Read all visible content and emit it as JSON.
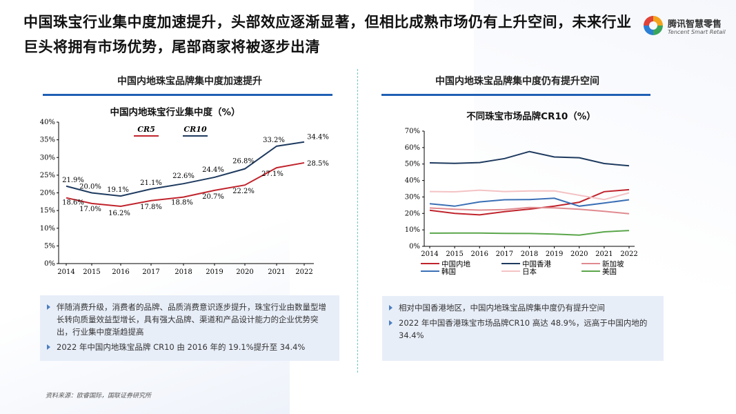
{
  "header": {
    "title": "中国珠宝行业集中度加速提升，头部效应逐渐显著，但相比成熟市场仍有上升空间，未来行业巨头将拥有市场优势，尾部商家将被逐步出清",
    "logo_name": "腾讯智慧零售",
    "logo_sub": "Tencent Smart Retail"
  },
  "left_panel": {
    "title": "中国内地珠宝品牌集中度加速提升",
    "notes": [
      "伴随消费升级，消费者的品牌、品质消费意识逐步提升，珠宝行业由数量型增长转向质量效益型增长，具有强大品牌、渠道和产品设计能力的企业优势突出，行业集中度渐趋提高",
      "2022 年中国内地珠宝品牌 CR10 由 2016 年的 19.1%提升至 34.4%"
    ]
  },
  "right_panel": {
    "title": "中国内地珠宝品牌集中度仍有提升空间",
    "notes": [
      "相对中国香港地区，中国内地珠宝品牌集中度仍有提升空间",
      "2022 年中国香港珠宝市场品牌CR10 高达 48.9%，远高于中国内地的 34.4%"
    ]
  },
  "source": "资料来源：欧睿国际，国联证券研究所",
  "chart_data": [
    {
      "type": "line",
      "title": "中国内地珠宝行业集中度（%）",
      "x": [
        "2014",
        "2015",
        "2016",
        "2017",
        "2018",
        "2019",
        "2020",
        "2021",
        "2022"
      ],
      "ylim": [
        0,
        40
      ],
      "yticks": [
        "0%",
        "5%",
        "10%",
        "15%",
        "20%",
        "25%",
        "30%",
        "35%",
        "40%"
      ],
      "series": [
        {
          "name": "CR5",
          "color": "#c0232b",
          "values": [
            18.6,
            17.0,
            16.2,
            17.8,
            18.8,
            20.7,
            22.2,
            27.1,
            28.5
          ],
          "labels": [
            "18.6%",
            "17.0%",
            "16.2%",
            "17.8%",
            "18.8%",
            "20.7%",
            "22.2%",
            "27.1%",
            "28.5%"
          ]
        },
        {
          "name": "CR10",
          "color": "#1e3a5f",
          "values": [
            21.9,
            20.0,
            19.1,
            21.1,
            22.6,
            24.4,
            26.8,
            33.2,
            34.4
          ],
          "labels": [
            "21.9%",
            "20.0%",
            "19.1%",
            "21.1%",
            "22.6%",
            "24.4%",
            "26.8%",
            "33.2%",
            "34.4%"
          ]
        }
      ]
    },
    {
      "type": "line",
      "title": "不同珠宝市场品牌CR10（%）",
      "x": [
        "2014",
        "2015",
        "2016",
        "2017",
        "2018",
        "2019",
        "2020",
        "2021",
        "2022"
      ],
      "ylim": [
        0,
        70
      ],
      "yticks": [
        "0%",
        "10%",
        "20%",
        "30%",
        "40%",
        "50%",
        "60%",
        "70%"
      ],
      "series": [
        {
          "name": "中国内地",
          "color": "#c0232b",
          "values": [
            21.9,
            20.0,
            19.1,
            21.1,
            22.6,
            24.4,
            26.8,
            33.2,
            34.4
          ]
        },
        {
          "name": "中国香港",
          "color": "#1e3a5f",
          "values": [
            50.7,
            50.4,
            50.9,
            53.3,
            57.6,
            54.3,
            53.8,
            50.3,
            48.9
          ]
        },
        {
          "name": "新加坡",
          "color": "#e08a8f",
          "values": [
            23.3,
            22.5,
            22.0,
            22.3,
            23.6,
            23.4,
            22.5,
            21.3,
            19.8
          ]
        },
        {
          "name": "韩国",
          "color": "#3a6fb5",
          "values": [
            25.9,
            24.4,
            27.0,
            28.3,
            28.4,
            29.2,
            24.4,
            26.3,
            28.3
          ]
        },
        {
          "name": "日本",
          "color": "#f4c2c4",
          "values": [
            33.3,
            33.1,
            34.1,
            33.3,
            33.6,
            33.7,
            31.0,
            28.4,
            32.5
          ]
        },
        {
          "name": "美国",
          "color": "#5aa64a",
          "values": [
            8.0,
            8.1,
            8.1,
            7.9,
            7.8,
            7.4,
            6.8,
            8.8,
            9.6
          ]
        }
      ]
    }
  ]
}
